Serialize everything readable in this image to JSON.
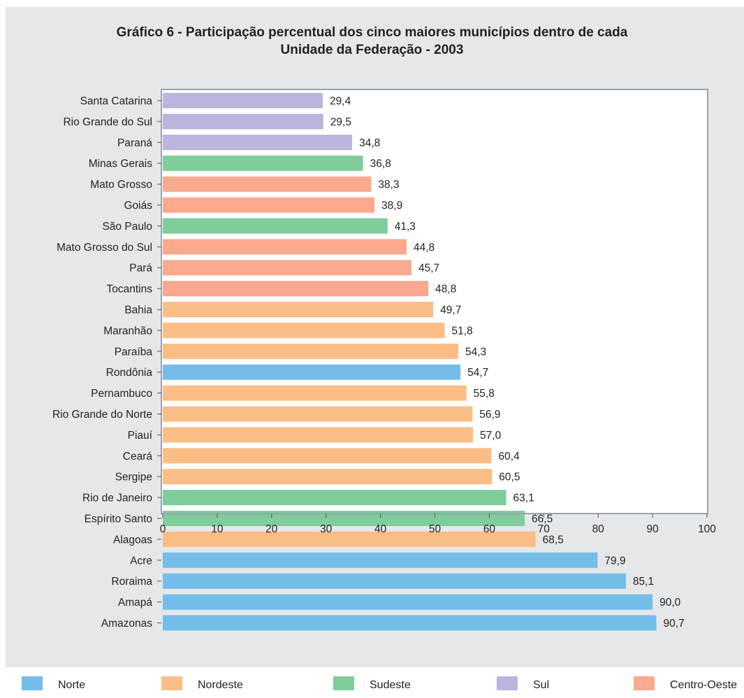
{
  "colors": {
    "Norte": "#73bde8",
    "Nordeste": "#fbbd86",
    "Sudeste": "#80cc9a",
    "Sul": "#b9b5dc",
    "Centro-Oeste": "#f8a98e"
  },
  "chart_data": {
    "type": "bar",
    "orientation": "horizontal",
    "title": "Gráfico 6 - Participação percentual dos cinco maiores municípios dentro de cada Unidade da Federação - 2003",
    "title_lines": [
      "Gráfico 6 - Participação percentual dos cinco maiores municípios dentro de cada",
      "Unidade da Federação - 2003"
    ],
    "xlim": [
      0,
      100
    ],
    "xticks": [
      0,
      10,
      20,
      30,
      40,
      50,
      60,
      70,
      80,
      90,
      100
    ],
    "grid": false,
    "legend_position": "bottom",
    "categories": [
      "Santa Catarina",
      "Rio Grande do Sul",
      "Paraná",
      "Minas Gerais",
      "Mato Grosso",
      "Goiás",
      "São Paulo",
      "Mato Grosso do Sul",
      "Pará",
      "Tocantins",
      "Bahia",
      "Maranhão",
      "Paraíba",
      "Rondônia",
      "Pernambuco",
      "Rio Grande do Norte",
      "Piauí",
      "Ceará",
      "Sergipe",
      "Rio de Janeiro",
      "Espírito Santo",
      "Alagoas",
      "Acre",
      "Roraima",
      "Amapá",
      "Amazonas"
    ],
    "values": [
      29.4,
      29.5,
      34.8,
      36.8,
      38.3,
      38.9,
      41.3,
      44.8,
      45.7,
      48.8,
      49.7,
      51.8,
      54.3,
      54.7,
      55.8,
      56.9,
      57.0,
      60.4,
      60.5,
      63.1,
      66.5,
      68.5,
      79.9,
      85.1,
      90.0,
      90.7
    ],
    "value_labels": [
      "29,4",
      "29,5",
      "34,8",
      "36,8",
      "38,3",
      "38,9",
      "41,3",
      "44,8",
      "45,7",
      "48,8",
      "49,7",
      "51,8",
      "54,3",
      "54,7",
      "55,8",
      "56,9",
      "57,0",
      "60,4",
      "60,5",
      "63,1",
      "66,5",
      "68,5",
      "79,9",
      "85,1",
      "90,0",
      "90,7"
    ],
    "regions": [
      "Sul",
      "Sul",
      "Sul",
      "Sudeste",
      "Centro-Oeste",
      "Centro-Oeste",
      "Sudeste",
      "Centro-Oeste",
      "Centro-Oeste",
      "Centro-Oeste",
      "Nordeste",
      "Nordeste",
      "Nordeste",
      "Norte",
      "Nordeste",
      "Nordeste",
      "Nordeste",
      "Nordeste",
      "Nordeste",
      "Sudeste",
      "Sudeste",
      "Nordeste",
      "Norte",
      "Norte",
      "Norte",
      "Norte"
    ],
    "legend": [
      "Norte",
      "Nordeste",
      "Sudeste",
      "Sul",
      "Centro-Oeste"
    ]
  }
}
